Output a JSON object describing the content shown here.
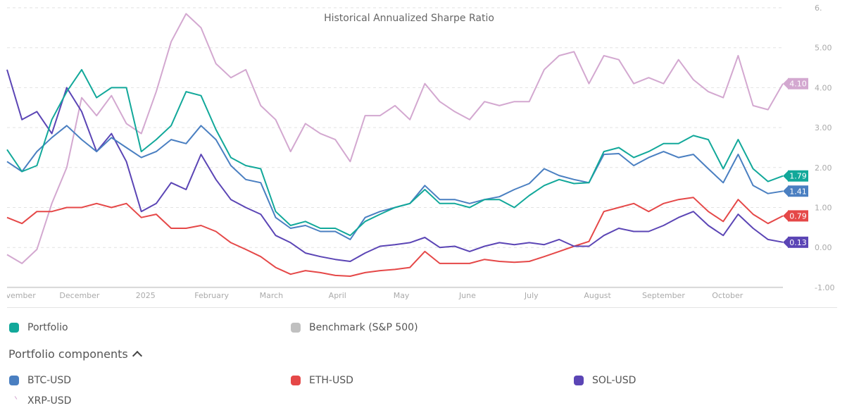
{
  "chart_data": {
    "type": "line",
    "title": "Historical Annualized Sharpe Ratio",
    "ylim": [
      -1,
      6
    ],
    "y_ticks": [
      "6.",
      "5.00",
      "4.00",
      "3.00",
      "2.00",
      "1.00",
      "0.00",
      "-1.00"
    ],
    "y_tick_values": [
      6,
      5,
      4,
      3,
      2,
      1,
      0,
      -1
    ],
    "x_ticks": [
      {
        "label": "November",
        "date": "2024-11-01"
      },
      {
        "label": "December",
        "date": "2024-12-01"
      },
      {
        "label": "2025",
        "date": "2025-01-01"
      },
      {
        "label": "February",
        "date": "2025-02-01"
      },
      {
        "label": "March",
        "date": "2025-03-01"
      },
      {
        "label": "April",
        "date": "2025-04-01"
      },
      {
        "label": "May",
        "date": "2025-05-01"
      },
      {
        "label": "June",
        "date": "2025-06-01"
      },
      {
        "label": "July",
        "date": "2025-07-01"
      },
      {
        "label": "August",
        "date": "2025-08-01"
      },
      {
        "label": "September",
        "date": "2025-09-01"
      },
      {
        "label": "October",
        "date": "2025-10-01"
      }
    ],
    "x_range": [
      "2024-10-28",
      "2025-10-27"
    ],
    "grid": true,
    "legend_placement": "bottom",
    "x": [
      "2024-10-28",
      "2024-11-04",
      "2024-11-11",
      "2024-11-18",
      "2024-11-25",
      "2024-12-02",
      "2024-12-09",
      "2024-12-16",
      "2024-12-23",
      "2024-12-30",
      "2025-01-06",
      "2025-01-13",
      "2025-01-20",
      "2025-01-27",
      "2025-02-03",
      "2025-02-10",
      "2025-02-17",
      "2025-02-24",
      "2025-03-03",
      "2025-03-10",
      "2025-03-17",
      "2025-03-24",
      "2025-03-31",
      "2025-04-07",
      "2025-04-14",
      "2025-04-21",
      "2025-04-28",
      "2025-05-05",
      "2025-05-12",
      "2025-05-19",
      "2025-05-26",
      "2025-06-02",
      "2025-06-09",
      "2025-06-16",
      "2025-06-23",
      "2025-06-30",
      "2025-07-07",
      "2025-07-14",
      "2025-07-21",
      "2025-07-28",
      "2025-08-04",
      "2025-08-11",
      "2025-08-18",
      "2025-08-25",
      "2025-09-01",
      "2025-09-08",
      "2025-09-15",
      "2025-09-22",
      "2025-09-29",
      "2025-10-06",
      "2025-10-13",
      "2025-10-20",
      "2025-10-27"
    ],
    "series": [
      {
        "name": "XRP-USD",
        "color": "#d3a8d0",
        "end_label": "4.10",
        "values": [
          -0.18,
          -0.4,
          -0.05,
          1.1,
          2.0,
          3.75,
          3.3,
          3.8,
          3.1,
          2.85,
          3.9,
          5.15,
          5.85,
          5.5,
          4.6,
          4.25,
          4.45,
          3.55,
          3.2,
          2.4,
          3.1,
          2.85,
          2.7,
          2.15,
          3.3,
          3.3,
          3.55,
          3.2,
          4.1,
          3.65,
          3.4,
          3.2,
          3.65,
          3.55,
          3.65,
          3.65,
          4.45,
          4.8,
          4.9,
          4.1,
          4.8,
          4.7,
          4.1,
          4.25,
          4.1,
          4.7,
          4.2,
          3.9,
          3.75,
          4.8,
          3.55,
          3.45,
          4.1
        ]
      },
      {
        "name": "ETH-USD",
        "color": "#e54848",
        "end_label": "0.79",
        "values": [
          0.75,
          0.6,
          0.9,
          0.9,
          1.0,
          1.0,
          1.1,
          1.0,
          1.1,
          0.75,
          0.83,
          0.48,
          0.48,
          0.55,
          0.4,
          0.12,
          -0.05,
          -0.23,
          -0.5,
          -0.67,
          -0.58,
          -0.63,
          -0.7,
          -0.72,
          -0.63,
          -0.58,
          -0.55,
          -0.5,
          -0.1,
          -0.4,
          -0.4,
          -0.4,
          -0.3,
          -0.35,
          -0.37,
          -0.35,
          -0.23,
          -0.1,
          0.03,
          0.15,
          0.9,
          1.0,
          1.1,
          0.9,
          1.1,
          1.2,
          1.25,
          0.9,
          0.65,
          1.2,
          0.83,
          0.6,
          0.79
        ]
      },
      {
        "name": "SOL-USD",
        "color": "#5b45b5",
        "end_label": "0.13",
        "values": [
          4.45,
          3.2,
          3.4,
          2.85,
          4.0,
          3.4,
          2.4,
          2.85,
          2.15,
          0.9,
          1.1,
          1.62,
          1.45,
          2.33,
          1.7,
          1.2,
          1.0,
          0.83,
          0.3,
          0.12,
          -0.14,
          -0.23,
          -0.3,
          -0.35,
          -0.14,
          0.03,
          0.07,
          0.12,
          0.25,
          0.0,
          0.03,
          -0.1,
          0.03,
          0.12,
          0.07,
          0.12,
          0.07,
          0.2,
          0.03,
          0.03,
          0.3,
          0.48,
          0.4,
          0.4,
          0.55,
          0.75,
          0.9,
          0.55,
          0.3,
          0.83,
          0.48,
          0.2,
          0.13
        ]
      },
      {
        "name": "BTC-USD",
        "color": "#4a7fc1",
        "end_label": "1.41",
        "values": [
          2.15,
          1.9,
          2.4,
          2.75,
          3.05,
          2.7,
          2.4,
          2.75,
          2.5,
          2.25,
          2.4,
          2.7,
          2.6,
          3.05,
          2.7,
          2.05,
          1.7,
          1.62,
          0.75,
          0.48,
          0.55,
          0.4,
          0.4,
          0.2,
          0.75,
          0.9,
          1.0,
          1.1,
          1.55,
          1.2,
          1.2,
          1.1,
          1.2,
          1.27,
          1.45,
          1.6,
          1.97,
          1.8,
          1.7,
          1.62,
          2.33,
          2.35,
          2.05,
          2.25,
          2.4,
          2.25,
          2.33,
          1.97,
          1.62,
          2.33,
          1.55,
          1.35,
          1.41
        ]
      },
      {
        "name": "Portfolio",
        "color": "#12a89a",
        "end_label": "1.79",
        "values": [
          2.45,
          1.9,
          2.05,
          3.2,
          3.9,
          4.45,
          3.75,
          4.0,
          4.0,
          2.4,
          2.7,
          3.05,
          3.9,
          3.8,
          2.95,
          2.25,
          2.05,
          1.97,
          0.9,
          0.55,
          0.65,
          0.48,
          0.48,
          0.3,
          0.65,
          0.83,
          1.0,
          1.1,
          1.45,
          1.1,
          1.1,
          1.0,
          1.2,
          1.2,
          1.0,
          1.3,
          1.55,
          1.7,
          1.6,
          1.62,
          2.4,
          2.5,
          2.25,
          2.4,
          2.6,
          2.6,
          2.8,
          2.7,
          1.97,
          2.7,
          1.97,
          1.65,
          1.79
        ]
      }
    ]
  },
  "legend": {
    "portfolio": {
      "label": "Portfolio",
      "color": "#12a89a"
    },
    "benchmark": {
      "label": "Benchmark (S&P 500)",
      "color": "#c0c0c0"
    },
    "components_title": "Portfolio components",
    "components_toggle_icon": "chevron-up-icon",
    "components": [
      {
        "label": "BTC-USD",
        "color": "#4a7fc1"
      },
      {
        "label": "ETH-USD",
        "color": "#e54848"
      },
      {
        "label": "SOL-USD",
        "color": "#5b45b5"
      },
      {
        "label": "XRP-USD",
        "color": "#d3a8d0"
      }
    ]
  }
}
